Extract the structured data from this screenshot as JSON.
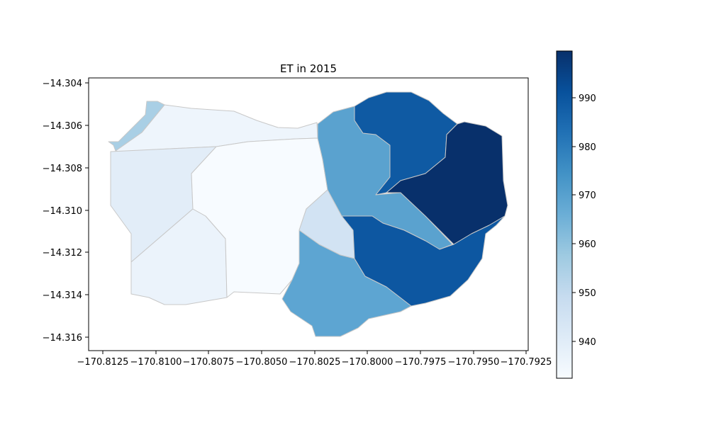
{
  "map": {
    "title": "ET in 2015",
    "x_ticks": [
      "−170.8125",
      "−170.8100",
      "−170.8075",
      "−170.8050",
      "−170.8025",
      "−170.8000",
      "−170.7975",
      "−170.7950",
      "−170.7925"
    ],
    "y_ticks": [
      "−14.304",
      "−14.306",
      "−14.308",
      "−14.310",
      "−14.312",
      "−14.314",
      "−14.316"
    ],
    "regions": [
      {
        "name": "nw-strip",
        "value": 955,
        "color": "#a9cfe5"
      },
      {
        "name": "north-west",
        "value": 933,
        "color": "#eef5fc"
      },
      {
        "name": "west",
        "value": 941,
        "color": "#e2edf8"
      },
      {
        "name": "south-west",
        "value": 936,
        "color": "#ebf3fb"
      },
      {
        "name": "center",
        "value": 932,
        "color": "#f7fbff"
      },
      {
        "name": "south-center-small",
        "value": 949,
        "color": "#d2e3f3"
      },
      {
        "name": "south",
        "value": 966,
        "color": "#5da5d2"
      },
      {
        "name": "east-valley",
        "value": 966,
        "color": "#5aa2cf"
      },
      {
        "name": "north-east",
        "value": 986,
        "color": "#0f5aa3"
      },
      {
        "name": "east",
        "value": 999,
        "color": "#08306b"
      },
      {
        "name": "south-east",
        "value": 987,
        "color": "#0d57a1"
      }
    ]
  },
  "colorbar": {
    "ticks": [
      "940",
      "950",
      "960",
      "970",
      "980",
      "990"
    ],
    "colors": [
      "#f7fbff",
      "#deebf7",
      "#c6dbef",
      "#9ecae1",
      "#6baed6",
      "#4292c6",
      "#2171b5",
      "#08519c",
      "#08306b"
    ]
  }
}
